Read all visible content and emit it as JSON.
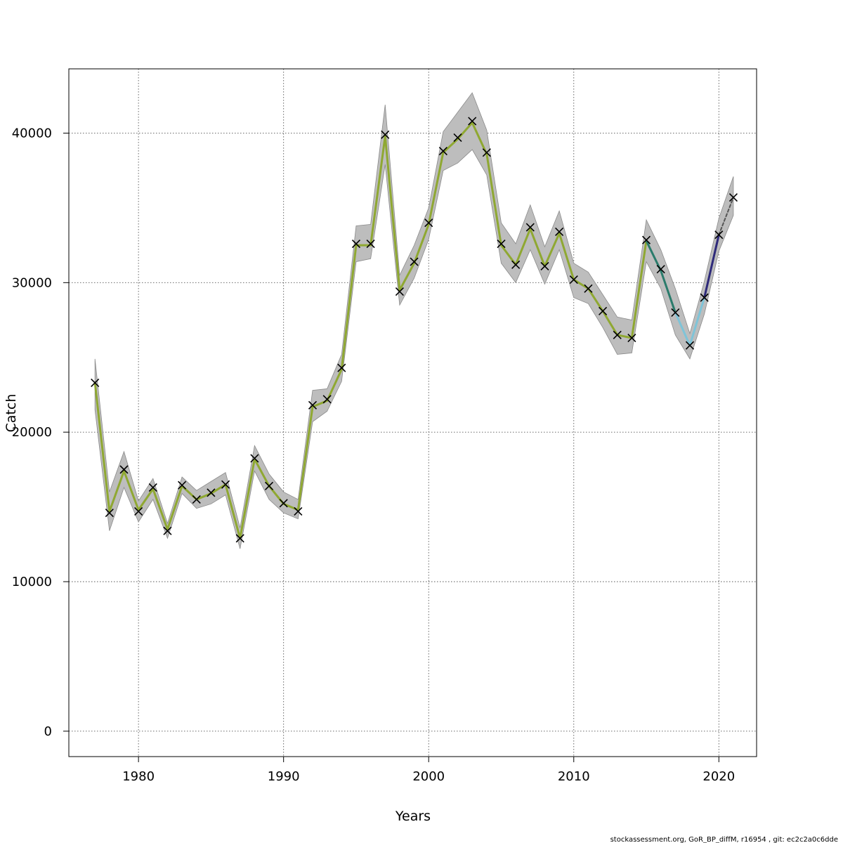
{
  "chart_data": {
    "type": "line",
    "xlabel": "Years",
    "ylabel": "Catch",
    "xlim": [
      1975.2,
      2022.6
    ],
    "ylim": [
      -1700,
      44300
    ],
    "xticks": [
      1980,
      1990,
      2000,
      2010,
      2020
    ],
    "yticks": [
      0,
      10000,
      20000,
      30000,
      40000
    ],
    "grid": true,
    "x": [
      1977,
      1978,
      1979,
      1980,
      1981,
      1982,
      1983,
      1984,
      1985,
      1986,
      1987,
      1988,
      1989,
      1990,
      1991,
      1992,
      1993,
      1994,
      1995,
      1996,
      1997,
      1998,
      1999,
      2000,
      2001,
      2002,
      2003,
      2004,
      2005,
      2006,
      2007,
      2008,
      2009,
      2010,
      2011,
      2012,
      2013,
      2014,
      2015,
      2016,
      2017,
      2018,
      2019,
      2020,
      2021
    ],
    "observed": [
      23300,
      14600,
      17500,
      14700,
      16300,
      13400,
      16450,
      15500,
      15950,
      16500,
      12900,
      18250,
      16400,
      15250,
      14700,
      21800,
      22200,
      24300,
      32600,
      32600,
      39900,
      29400,
      31400,
      34000,
      38800,
      39700,
      40800,
      38700,
      32600,
      31200,
      33700,
      31100,
      33400,
      30200,
      29600,
      28100,
      26500,
      26300,
      32850,
      30900,
      28000,
      25800,
      29000,
      33200,
      35700
    ],
    "series": [
      {
        "name": "",
        "color": "#8fa832",
        "values": [
          23300,
          14700,
          17400,
          14800,
          16200,
          13500,
          16400,
          15500,
          15900,
          16500,
          12900,
          18200,
          16400,
          15200,
          14800,
          21700,
          22100,
          24200,
          32500,
          32500,
          39800,
          29500,
          31300,
          33900,
          38700,
          39600,
          40700,
          38600,
          32500,
          31200,
          33600,
          31100,
          33300,
          30200,
          29600,
          28100,
          26500,
          26300,
          32800,
          null,
          null,
          null,
          null,
          null,
          null
        ]
      },
      {
        "name": "",
        "color": "#2a7b6b",
        "values": [
          null,
          null,
          null,
          null,
          null,
          null,
          null,
          null,
          null,
          null,
          null,
          null,
          null,
          null,
          null,
          null,
          null,
          null,
          null,
          null,
          null,
          null,
          null,
          null,
          null,
          null,
          null,
          null,
          null,
          null,
          null,
          null,
          null,
          null,
          null,
          null,
          null,
          null,
          32800,
          30800,
          28000,
          null,
          null,
          null,
          null
        ]
      },
      {
        "name": "",
        "color": "#7fc4d8",
        "values": [
          null,
          null,
          null,
          null,
          null,
          null,
          null,
          null,
          null,
          null,
          null,
          null,
          null,
          null,
          null,
          null,
          null,
          null,
          null,
          null,
          null,
          null,
          null,
          null,
          null,
          null,
          null,
          null,
          null,
          null,
          null,
          null,
          null,
          null,
          null,
          null,
          null,
          null,
          null,
          null,
          28000,
          25800,
          29000,
          null,
          null
        ]
      },
      {
        "name": "",
        "color": "#2e2a7a",
        "values": [
          null,
          null,
          null,
          null,
          null,
          null,
          null,
          null,
          null,
          null,
          null,
          null,
          null,
          null,
          null,
          null,
          null,
          null,
          null,
          null,
          null,
          null,
          null,
          null,
          null,
          null,
          null,
          null,
          null,
          null,
          null,
          null,
          null,
          null,
          null,
          null,
          null,
          null,
          null,
          null,
          null,
          null,
          29000,
          33200,
          null
        ]
      },
      {
        "name": "",
        "color": "#555555",
        "dashed": true,
        "values": [
          null,
          null,
          null,
          null,
          null,
          null,
          null,
          null,
          null,
          null,
          null,
          null,
          null,
          null,
          null,
          null,
          null,
          null,
          null,
          null,
          null,
          null,
          null,
          null,
          null,
          null,
          null,
          null,
          null,
          null,
          null,
          null,
          null,
          null,
          null,
          null,
          null,
          null,
          null,
          null,
          null,
          null,
          null,
          33200,
          35700
        ]
      }
    ],
    "band_upper": [
      24900,
      16000,
      18700,
      15400,
      16900,
      13900,
      17000,
      16100,
      16700,
      17300,
      13600,
      19100,
      17200,
      16000,
      15500,
      22800,
      22900,
      25200,
      33800,
      33900,
      41900,
      30500,
      32500,
      35000,
      40100,
      41400,
      42700,
      40200,
      34000,
      32600,
      35200,
      32400,
      34800,
      31300,
      30700,
      29200,
      27700,
      27500,
      34200,
      32200,
      29600,
      26600,
      30100,
      34300,
      37100
    ],
    "band_lower": [
      21500,
      13400,
      16300,
      14000,
      15500,
      12900,
      15900,
      14900,
      15200,
      15800,
      12200,
      17400,
      15500,
      14600,
      14200,
      20700,
      21400,
      23400,
      31400,
      31600,
      37900,
      28500,
      30300,
      32900,
      37500,
      38000,
      38900,
      37200,
      31300,
      30000,
      32200,
      29900,
      32200,
      29000,
      28600,
      27000,
      25200,
      25300,
      31400,
      29600,
      26500,
      24900,
      27900,
      32100,
      34500
    ]
  },
  "footer_text": "stockassessment.org, GoR_BP_diffM, r16954 , git: ec2c2a0c6dde"
}
